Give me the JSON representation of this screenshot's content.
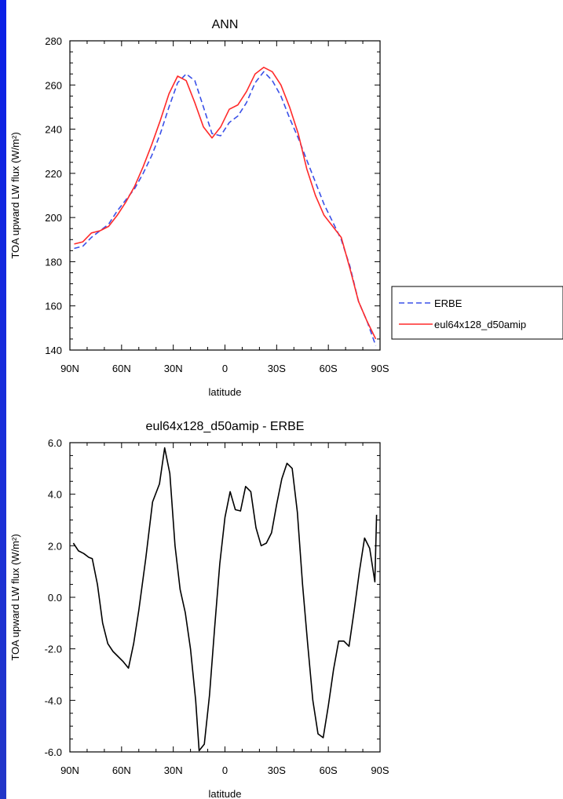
{
  "chart_data": [
    {
      "type": "line",
      "title": "ANN",
      "xlabel": "latitude",
      "ylabel": "TOA upward LW flux (W/m²)",
      "x_categories": [
        "90N",
        "60N",
        "30N",
        "0",
        "30S",
        "60S",
        "90S"
      ],
      "xlim": [
        90,
        -90
      ],
      "ylim": [
        140,
        280
      ],
      "yticks": [
        "140",
        "160",
        "180",
        "200",
        "220",
        "240",
        "260",
        "280"
      ],
      "legend_position": "right",
      "series": [
        {
          "name": "ERBE",
          "color": "#3a50e8",
          "dash": "dashed",
          "x": [
            87.5,
            82.5,
            77.5,
            72.5,
            67.5,
            62.5,
            57.5,
            52.5,
            47.5,
            42.5,
            37.5,
            32.5,
            27.5,
            22.5,
            17.5,
            12.5,
            7.5,
            2.5,
            -2.5,
            -7.5,
            -12.5,
            -17.5,
            -22.5,
            -27.5,
            -32.5,
            -37.5,
            -42.5,
            -47.5,
            -52.5,
            -57.5,
            -62.5,
            -67.5,
            -72.5,
            -77.5,
            -82.5,
            -87.5
          ],
          "y": [
            186,
            187,
            191,
            194,
            197,
            203,
            208,
            213,
            220,
            228,
            238,
            250,
            261,
            265,
            262,
            250,
            238,
            237,
            243,
            246,
            252,
            261,
            266,
            262,
            255,
            245,
            236,
            226,
            216,
            206,
            198,
            190,
            178,
            162,
            153,
            142
          ]
        },
        {
          "name": "eul64x128_d50amip",
          "color": "#ff2a2a",
          "dash": "solid",
          "x": [
            87.5,
            82.5,
            77.5,
            72.5,
            67.5,
            62.5,
            57.5,
            52.5,
            47.5,
            42.5,
            37.5,
            32.5,
            27.5,
            22.5,
            17.5,
            12.5,
            7.5,
            2.5,
            -2.5,
            -7.5,
            -12.5,
            -17.5,
            -22.5,
            -27.5,
            -32.5,
            -37.5,
            -42.5,
            -47.5,
            -52.5,
            -57.5,
            -62.5,
            -67.5,
            -72.5,
            -77.5,
            -82.5,
            -87.5
          ],
          "y": [
            188,
            189,
            193,
            194,
            196,
            201,
            207,
            214,
            223,
            233,
            244,
            256,
            264,
            262,
            252,
            241,
            236,
            241,
            249,
            251,
            257,
            265,
            268,
            266,
            260,
            250,
            238,
            222,
            210,
            201,
            196,
            191,
            177,
            162,
            153,
            145
          ]
        }
      ]
    },
    {
      "type": "line",
      "title": "eul64x128_d50amip - ERBE",
      "xlabel": "latitude",
      "ylabel": "TOA upward LW flux (W/m²)",
      "x_categories": [
        "90N",
        "60N",
        "30N",
        "0",
        "30S",
        "60S",
        "90S"
      ],
      "xlim": [
        90,
        -90
      ],
      "ylim": [
        -6.0,
        6.0
      ],
      "yticks": [
        "-6.0",
        "-4.0",
        "-2.0",
        "0.0",
        "2.0",
        "4.0",
        "6.0"
      ],
      "series": [
        {
          "color": "#000000",
          "dash": "solid",
          "x": [
            88,
            85,
            82,
            79,
            77,
            74,
            71,
            68,
            65,
            62,
            59,
            56,
            53,
            50,
            46,
            42,
            38,
            35,
            32,
            29,
            26,
            23,
            20,
            17,
            15,
            12,
            9,
            6,
            3,
            0,
            -3,
            -6,
            -9,
            -12,
            -15,
            -18,
            -21,
            -24,
            -27,
            -30,
            -33,
            -36,
            -39,
            -42,
            -45,
            -48,
            -51,
            -54,
            -57,
            -60,
            -63,
            -66,
            -69,
            -72,
            -75,
            -78,
            -81,
            -84,
            -87,
            -88
          ],
          "y": [
            2.1,
            1.8,
            1.7,
            1.55,
            1.5,
            0.5,
            -1.0,
            -1.8,
            -2.1,
            -2.3,
            -2.5,
            -2.75,
            -1.8,
            -0.5,
            1.5,
            3.7,
            4.4,
            5.8,
            4.8,
            2.0,
            0.3,
            -0.6,
            -2.0,
            -4.0,
            -5.95,
            -5.7,
            -3.8,
            -1.2,
            1.3,
            3.1,
            4.1,
            3.4,
            3.35,
            4.3,
            4.1,
            2.7,
            2.0,
            2.1,
            2.5,
            3.6,
            4.6,
            5.2,
            5.0,
            3.3,
            0.5,
            -1.8,
            -4.0,
            -5.3,
            -5.45,
            -4.2,
            -2.8,
            -1.7,
            -1.7,
            -1.9,
            -0.5,
            1.0,
            2.3,
            1.9,
            0.6,
            3.2
          ]
        }
      ]
    }
  ]
}
